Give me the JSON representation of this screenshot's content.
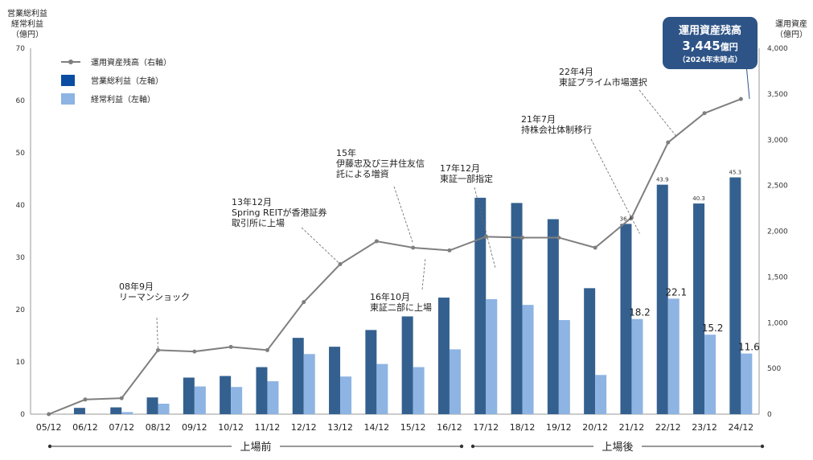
{
  "chart_data": {
    "type": "bar",
    "categories": [
      "05/12",
      "06/12",
      "07/12",
      "08/12",
      "09/12",
      "10/12",
      "11/12",
      "12/12",
      "13/12",
      "14/12",
      "15/12",
      "16/12",
      "17/12",
      "18/12",
      "19/12",
      "20/12",
      "21/12",
      "22/12",
      "23/12",
      "24/12"
    ],
    "series": [
      {
        "name": "営業総利益（左軸）",
        "axis": "left",
        "type": "bar",
        "color": "#34608f",
        "values": [
          0,
          1.2,
          1.3,
          3.2,
          7.0,
          7.3,
          9.0,
          14.6,
          12.9,
          16.1,
          18.7,
          22.3,
          41.4,
          40.4,
          37.3,
          24.1,
          36.4,
          43.9,
          40.3,
          45.3
        ],
        "labels": [
          "",
          "",
          "",
          "",
          "",
          "",
          "",
          "",
          "",
          "",
          "",
          "",
          "",
          "",
          "",
          "",
          "36.4",
          "43.9",
          "40.3",
          "45.3"
        ]
      },
      {
        "name": "経常利益（左軸）",
        "axis": "left",
        "type": "bar",
        "color": "#8db4e2",
        "values": [
          0,
          0,
          0.4,
          2.0,
          5.3,
          5.2,
          6.3,
          11.5,
          7.2,
          9.6,
          9.0,
          12.4,
          22.0,
          20.9,
          18.0,
          7.5,
          18.2,
          22.1,
          15.2,
          11.6
        ],
        "labels": [
          "",
          "",
          "",
          "",
          "",
          "",
          "",
          "",
          "",
          "",
          "",
          "",
          "",
          "",
          "",
          "",
          "18.2",
          "22.1",
          "15.2",
          "11.6"
        ]
      },
      {
        "name": "運用資産残高（右軸）",
        "axis": "right",
        "type": "line",
        "color": "#7f7f7f",
        "values": [
          0,
          160,
          175,
          700,
          685,
          735,
          700,
          1225,
          1640,
          1890,
          1820,
          1790,
          1940,
          1930,
          1930,
          1820,
          2150,
          2970,
          3290,
          3445
        ]
      }
    ],
    "left_axis": {
      "title": [
        "営業総利益",
        "経常利益",
        "（億円）"
      ],
      "min": 0,
      "max": 70,
      "ticks": [
        0,
        10,
        20,
        30,
        40,
        50,
        60,
        70
      ]
    },
    "right_axis": {
      "title": [
        "運用資産",
        "（億円）"
      ],
      "min": 0,
      "max": 4000,
      "ticks": [
        0,
        500,
        1000,
        1500,
        2000,
        2500,
        3000,
        3500,
        4000
      ],
      "tick_labels": [
        "0",
        "500",
        "1,000",
        "1,500",
        "2,000",
        "2,500",
        "3,000",
        "3,500",
        "4,000"
      ]
    },
    "legend": [
      {
        "label": "運用資産残高（右軸）",
        "kind": "line",
        "color": "#7f7f7f"
      },
      {
        "label": "営業総利益（左軸）",
        "kind": "bar",
        "color": "#0a4da2"
      },
      {
        "label": "経常利益（左軸）",
        "kind": "bar",
        "color": "#8db4e2"
      }
    ],
    "legend_position": "top-left",
    "annotations": [
      {
        "lines": [
          "08年9月",
          "リーマンショック"
        ],
        "index": 3
      },
      {
        "lines": [
          "13年12月",
          "Spring REITが香港証券",
          "取引所に上場"
        ],
        "index": 8
      },
      {
        "lines": [
          "15年",
          "伊藤忠及び三井住友信",
          "託による増資"
        ],
        "index": 10
      },
      {
        "lines": [
          "16年10月",
          "東証二部に上場"
        ],
        "index": 11
      },
      {
        "lines": [
          "17年12月",
          "東証一部指定"
        ],
        "index": 12
      },
      {
        "lines": [
          "21年7月",
          "持株会社体制移行"
        ],
        "index": 16
      },
      {
        "lines": [
          "22年4月",
          "東証プライム市場選択"
        ],
        "index": 17
      }
    ],
    "callout": {
      "title": "運用資産残高",
      "value": "3,445",
      "unit": "億円",
      "sub": "（2024年末時点）",
      "color": "#2e5487"
    },
    "phases": [
      {
        "label": "上場前",
        "from": "05/12",
        "to": "16/12"
      },
      {
        "label": "上場後",
        "from": "17/12",
        "to": "24/12"
      }
    ],
    "grid": false
  }
}
